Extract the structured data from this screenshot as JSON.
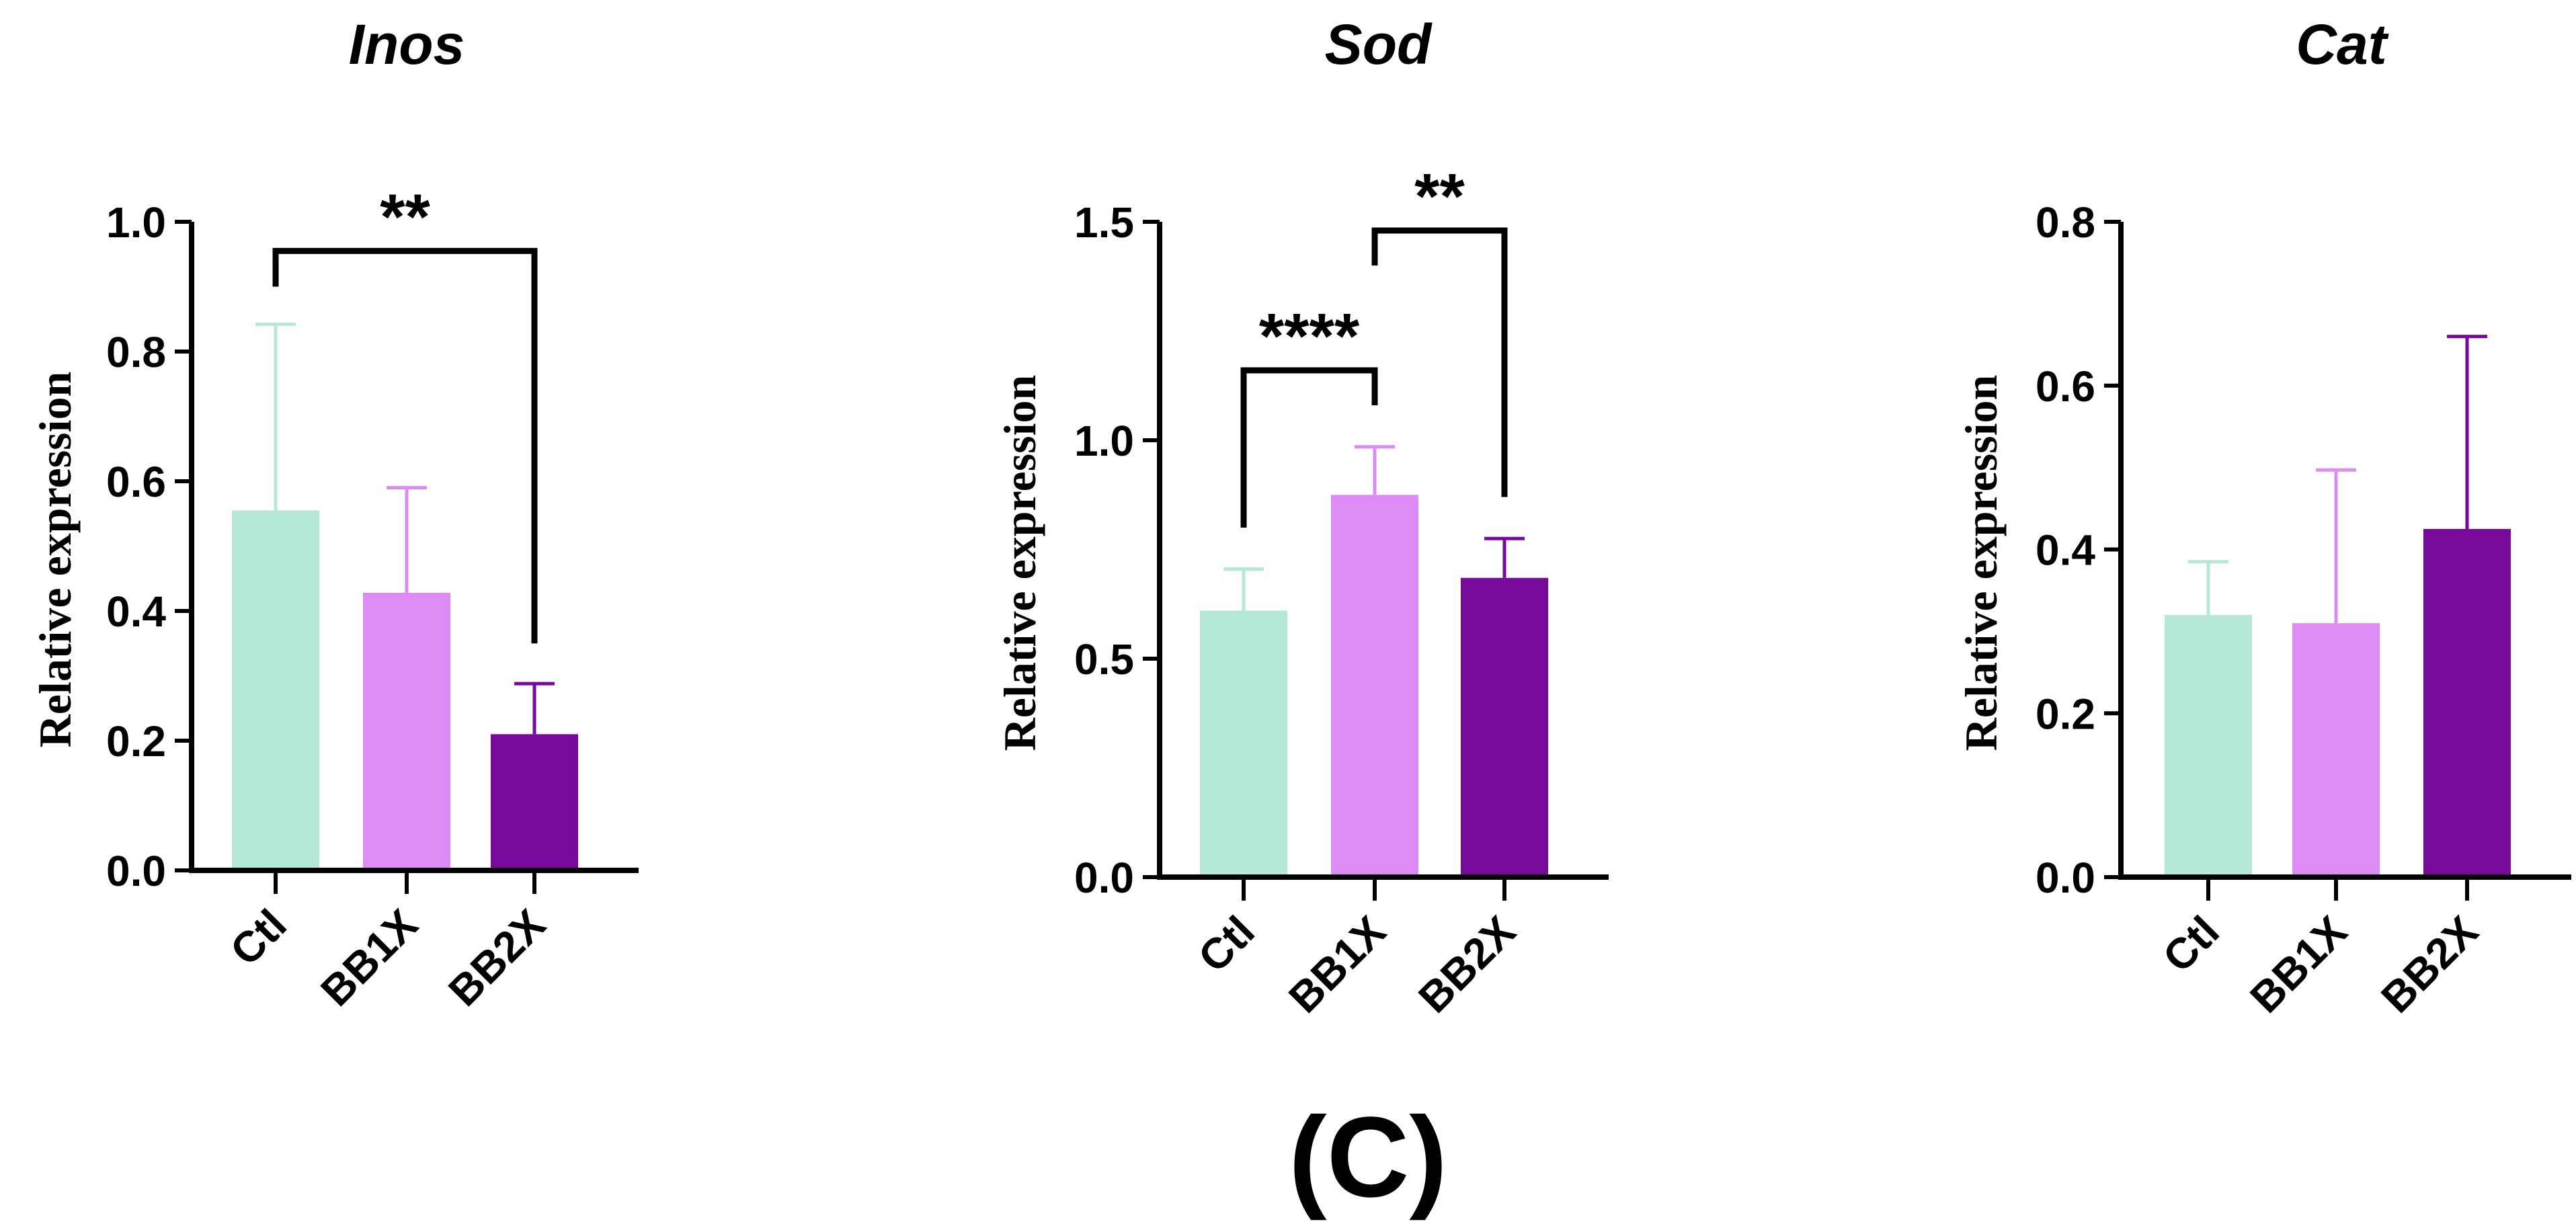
{
  "figure_label": "(C)",
  "chart_data": [
    {
      "type": "bar",
      "title": "Inos",
      "xlabel": "",
      "ylabel": "Relative expression",
      "categories": [
        "Ctl",
        "BB1X",
        "BB2X"
      ],
      "values": [
        0.555,
        0.428,
        0.21
      ],
      "error_upper": [
        0.842,
        0.59,
        0.288
      ],
      "ylim": [
        0,
        1.0
      ],
      "yticks": [
        0.0,
        0.2,
        0.4,
        0.6,
        0.8,
        1.0
      ],
      "ytick_labels": [
        "0.0",
        "0.2",
        "0.4",
        "0.6",
        "0.8",
        "1.0"
      ],
      "colors": [
        "#b5e8d6",
        "#dd8cf5",
        "#780a9b"
      ],
      "significance": [
        {
          "from": 0,
          "to": 2,
          "label": "**",
          "y": 0.955,
          "left_end": 0.9,
          "right_end": 0.35
        }
      ]
    },
    {
      "type": "bar",
      "title": "Sod",
      "xlabel": "",
      "ylabel": "Relative expression",
      "categories": [
        "Ctl",
        "BB1X",
        "BB2X"
      ],
      "values": [
        0.61,
        0.875,
        0.685
      ],
      "error_upper": [
        0.705,
        0.985,
        0.775
      ],
      "ylim": [
        0,
        1.5
      ],
      "yticks": [
        0.0,
        0.5,
        1.0,
        1.5
      ],
      "ytick_labels": [
        "0.0",
        "0.5",
        "1.0",
        "1.5"
      ],
      "colors": [
        "#b5e8d6",
        "#dd8cf5",
        "#780a9b"
      ],
      "significance": [
        {
          "from": 0,
          "to": 1,
          "label": "****",
          "y": 1.16,
          "left_end": 0.8,
          "right_end": 1.08
        },
        {
          "from": 1,
          "to": 2,
          "label": "**",
          "y": 1.48,
          "left_end": 1.4,
          "right_end": 0.87
        }
      ]
    },
    {
      "type": "bar",
      "title": "Cat",
      "xlabel": "",
      "ylabel": "Relative expression",
      "categories": [
        "Ctl",
        "BB1X",
        "BB2X"
      ],
      "values": [
        0.32,
        0.31,
        0.425
      ],
      "error_upper": [
        0.385,
        0.497,
        0.66
      ],
      "ylim": [
        0,
        0.8
      ],
      "yticks": [
        0.0,
        0.2,
        0.4,
        0.6,
        0.8
      ],
      "ytick_labels": [
        "0.0",
        "0.2",
        "0.4",
        "0.6",
        "0.8"
      ],
      "colors": [
        "#b5e8d6",
        "#dd8cf5",
        "#780a9b"
      ],
      "significance": []
    }
  ]
}
